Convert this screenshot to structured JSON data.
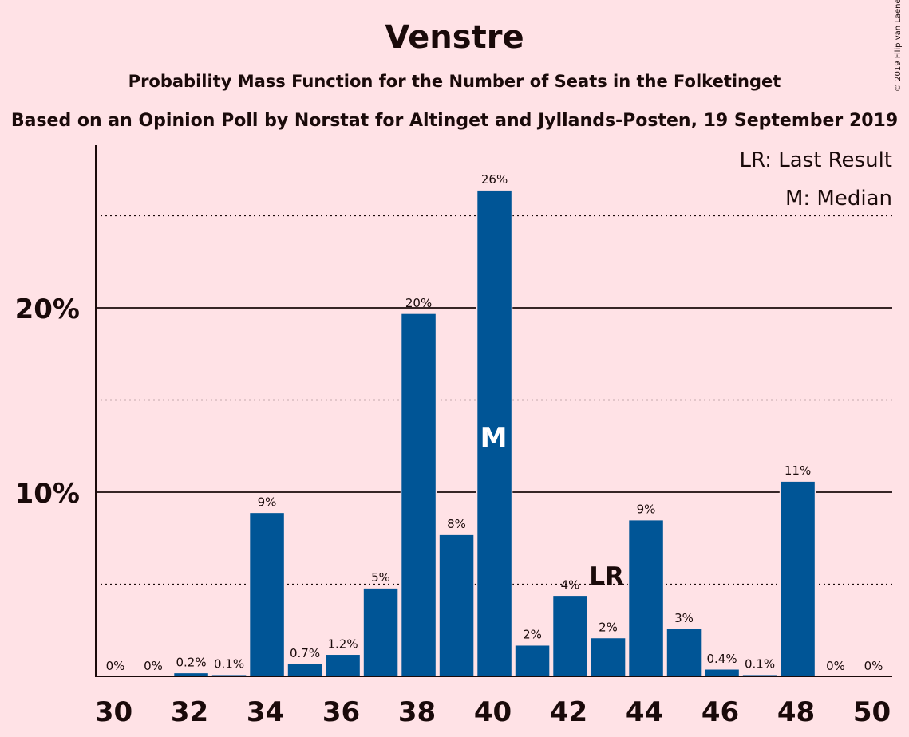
{
  "copyright": "© 2019 Filip van Laenen",
  "chart_data": {
    "type": "bar",
    "title": "Venstre",
    "subtitle": "Probability Mass Function for the Number of Seats in the Folketinget",
    "subtitle2": "Based on an Opinion Poll by Norstat for Altinget and Jyllands-Posten, 19 September 2019",
    "xlabel": "",
    "ylabel": "",
    "categories": [
      30,
      31,
      32,
      33,
      34,
      35,
      36,
      37,
      38,
      39,
      40,
      41,
      42,
      43,
      44,
      45,
      46,
      47,
      48,
      49,
      50
    ],
    "x_tick_labels": [
      "30",
      "32",
      "34",
      "36",
      "38",
      "40",
      "42",
      "44",
      "46",
      "48",
      "50"
    ],
    "values": [
      0,
      0,
      0.2,
      0.1,
      8.9,
      0.7,
      1.2,
      4.8,
      19.7,
      7.7,
      26.4,
      1.7,
      4.4,
      2.1,
      8.5,
      2.6,
      0.4,
      0.1,
      10.6,
      0,
      0
    ],
    "data_labels": [
      "0%",
      "0%",
      "0.2%",
      "0.1%",
      "9%",
      "0.7%",
      "1.2%",
      "5%",
      "20%",
      "8%",
      "26%",
      "2%",
      "4%",
      "2%",
      "9%",
      "3%",
      "0.4%",
      "0.1%",
      "11%",
      "0%",
      "0%"
    ],
    "ylim": [
      0,
      28.8
    ],
    "y_major_ticks": [
      10,
      20
    ],
    "y_tick_labels": [
      "10%",
      "20%"
    ],
    "y_minor_gridlines": [
      5,
      15,
      25
    ],
    "bar_color": "#005596",
    "last_result_seat": 43,
    "median_seat": 40,
    "last_result_marker": "LR",
    "median_marker": "M",
    "legend": [
      "LR: Last Result",
      "M: Median"
    ],
    "legend_position": "top-right"
  }
}
